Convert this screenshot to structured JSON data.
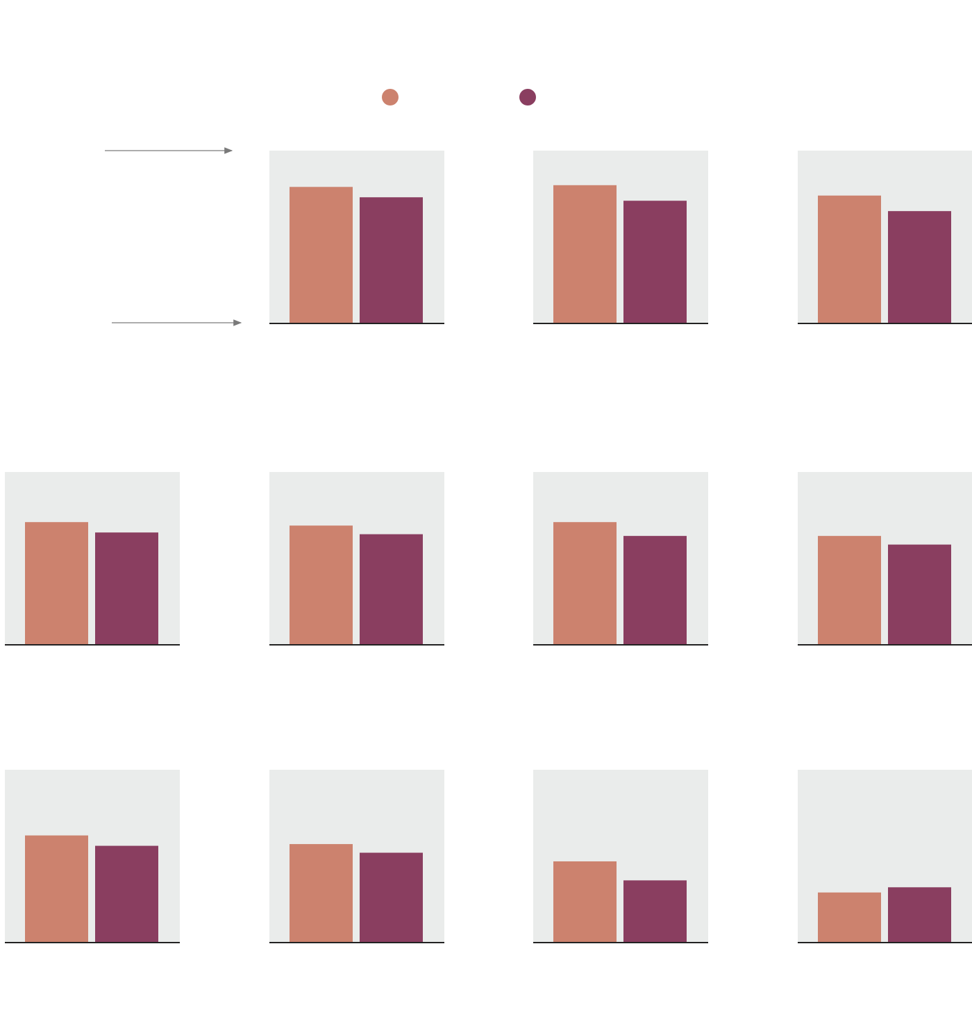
{
  "colors": {
    "series_a": "#cc826e",
    "series_b": "#8a3e60",
    "panel_background": "#eaeceb",
    "baseline": "#222222",
    "arrow": "#7a7a7a"
  },
  "legend": {
    "items": [
      {
        "series": "series_a",
        "label": ""
      },
      {
        "series": "series_b",
        "label": ""
      }
    ]
  },
  "annotations": {
    "top_arrow_label": "",
    "bottom_arrow_label": ""
  },
  "chart_data": {
    "type": "bar",
    "layout": "small-multiples",
    "grid": false,
    "legend_position": "top-center",
    "ylim": [
      0,
      100
    ],
    "series_keys": [
      "series_a",
      "series_b"
    ],
    "panels": [
      {
        "row": 0,
        "col": 1,
        "values": [
          79,
          73
        ]
      },
      {
        "row": 0,
        "col": 2,
        "values": [
          80,
          71
        ]
      },
      {
        "row": 0,
        "col": 3,
        "values": [
          74,
          65
        ]
      },
      {
        "row": 1,
        "col": 0,
        "values": [
          71,
          65
        ]
      },
      {
        "row": 1,
        "col": 1,
        "values": [
          69,
          64
        ]
      },
      {
        "row": 1,
        "col": 2,
        "values": [
          71,
          63
        ]
      },
      {
        "row": 1,
        "col": 3,
        "values": [
          63,
          58
        ]
      },
      {
        "row": 2,
        "col": 0,
        "values": [
          62,
          56
        ]
      },
      {
        "row": 2,
        "col": 1,
        "values": [
          57,
          52
        ]
      },
      {
        "row": 2,
        "col": 2,
        "values": [
          47,
          36
        ]
      },
      {
        "row": 2,
        "col": 3,
        "values": [
          29,
          32
        ]
      }
    ]
  }
}
